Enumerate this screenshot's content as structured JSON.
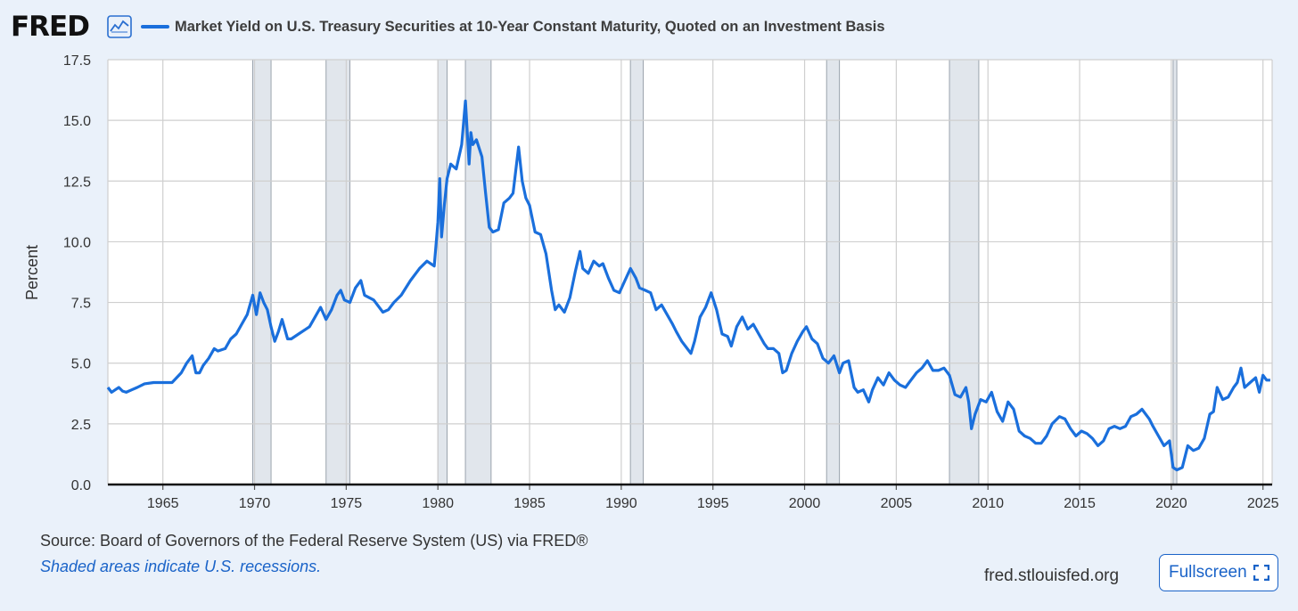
{
  "header": {
    "logo_text": "FRED",
    "logo_icon": "line-chart-icon",
    "title": "Market Yield on U.S. Treasury Securities at 10-Year Constant Maturity, Quoted on an Investment Basis"
  },
  "footer": {
    "source": "Source: Board of Governors of the Federal Reserve System (US) via FRED®",
    "note": "Shaded areas indicate U.S. recessions.",
    "site": "fred.stlouisfed.org",
    "fullscreen_label": "Fullscreen",
    "fullscreen_icon": "expand-icon"
  },
  "colors": {
    "line": "#1a6fdc",
    "recession_fill": "#e1e6ec",
    "background": "#eaf1fa",
    "link": "#1a63c8"
  },
  "chart_data": {
    "type": "line",
    "title": "Market Yield on U.S. Treasury Securities at 10-Year Constant Maturity, Quoted on an Investment Basis",
    "xlabel": "",
    "ylabel": "Percent",
    "xlim": [
      1962.0,
      2025.5
    ],
    "ylim": [
      0,
      17.5
    ],
    "yticks": [
      "0.0",
      "2.5",
      "5.0",
      "7.5",
      "10.0",
      "12.5",
      "15.0",
      "17.5"
    ],
    "xticks": [
      "1965",
      "1970",
      "1975",
      "1980",
      "1985",
      "1990",
      "1995",
      "2000",
      "2005",
      "2010",
      "2015",
      "2020",
      "2025"
    ],
    "grid": true,
    "recessions": [
      [
        1969.9,
        1970.9
      ],
      [
        1973.9,
        1975.2
      ],
      [
        1980.0,
        1980.5
      ],
      [
        1981.5,
        1982.9
      ],
      [
        1990.5,
        1991.2
      ],
      [
        2001.2,
        2001.9
      ],
      [
        2007.9,
        2009.5
      ],
      [
        2020.1,
        2020.3
      ]
    ],
    "series": [
      {
        "name": "Market Yield on U.S. Treasury Securities at 10-Year Constant Maturity, Quoted on an Investment Basis",
        "x": [
          1962.0,
          1962.2,
          1962.4,
          1962.6,
          1962.8,
          1963.0,
          1963.3,
          1963.6,
          1964.0,
          1964.5,
          1965.0,
          1965.5,
          1966.0,
          1966.3,
          1966.6,
          1966.8,
          1967.0,
          1967.2,
          1967.5,
          1967.8,
          1968.0,
          1968.4,
          1968.7,
          1969.0,
          1969.3,
          1969.6,
          1969.9,
          1970.1,
          1970.3,
          1970.5,
          1970.7,
          1970.9,
          1971.1,
          1971.3,
          1971.5,
          1971.8,
          1972.0,
          1972.4,
          1972.8,
          1973.0,
          1973.3,
          1973.6,
          1973.9,
          1974.2,
          1974.5,
          1974.7,
          1974.9,
          1975.2,
          1975.5,
          1975.8,
          1976.0,
          1976.5,
          1977.0,
          1977.3,
          1977.6,
          1978.0,
          1978.5,
          1979.0,
          1979.4,
          1979.8,
          1980.0,
          1980.1,
          1980.2,
          1980.35,
          1980.5,
          1980.7,
          1981.0,
          1981.3,
          1981.5,
          1981.7,
          1981.8,
          1981.9,
          1982.1,
          1982.4,
          1982.6,
          1982.8,
          1983.0,
          1983.3,
          1983.6,
          1983.9,
          1984.1,
          1984.4,
          1984.6,
          1984.8,
          1985.0,
          1985.3,
          1985.6,
          1985.9,
          1986.2,
          1986.4,
          1986.6,
          1986.9,
          1987.2,
          1987.5,
          1987.75,
          1987.9,
          1988.2,
          1988.5,
          1988.8,
          1989.0,
          1989.3,
          1989.6,
          1989.9,
          1990.2,
          1990.5,
          1990.8,
          1991.0,
          1991.3,
          1991.6,
          1991.9,
          1992.2,
          1992.5,
          1992.8,
          1993.0,
          1993.3,
          1993.6,
          1993.8,
          1994.0,
          1994.3,
          1994.6,
          1994.9,
          1995.2,
          1995.5,
          1995.8,
          1996.0,
          1996.3,
          1996.6,
          1996.9,
          1997.2,
          1997.5,
          1997.8,
          1998.0,
          1998.3,
          1998.6,
          1998.8,
          1999.0,
          1999.3,
          1999.6,
          1999.9,
          2000.1,
          2000.4,
          2000.7,
          2001.0,
          2001.3,
          2001.6,
          2001.9,
          2002.1,
          2002.4,
          2002.7,
          2002.9,
          2003.2,
          2003.5,
          2003.7,
          2004.0,
          2004.3,
          2004.6,
          2004.9,
          2005.2,
          2005.5,
          2005.8,
          2006.1,
          2006.4,
          2006.7,
          2007.0,
          2007.3,
          2007.6,
          2007.9,
          2008.2,
          2008.5,
          2008.8,
          2008.95,
          2009.1,
          2009.3,
          2009.6,
          2009.9,
          2010.2,
          2010.5,
          2010.8,
          2011.1,
          2011.4,
          2011.7,
          2012.0,
          2012.3,
          2012.6,
          2012.9,
          2013.2,
          2013.5,
          2013.9,
          2014.2,
          2014.5,
          2014.8,
          2015.1,
          2015.4,
          2015.7,
          2016.0,
          2016.3,
          2016.6,
          2016.9,
          2017.2,
          2017.5,
          2017.8,
          2018.1,
          2018.4,
          2018.8,
          2019.0,
          2019.3,
          2019.6,
          2019.9,
          2020.1,
          2020.3,
          2020.6,
          2020.9,
          2021.2,
          2021.5,
          2021.8,
          2022.1,
          2022.3,
          2022.5,
          2022.8,
          2023.1,
          2023.4,
          2023.6,
          2023.8,
          2024.0,
          2024.3,
          2024.6,
          2024.8,
          2025.0,
          2025.2,
          2025.4
        ],
        "values": [
          4.0,
          3.8,
          3.9,
          4.0,
          3.85,
          3.8,
          3.9,
          4.0,
          4.15,
          4.2,
          4.2,
          4.2,
          4.6,
          5.0,
          5.3,
          4.6,
          4.6,
          4.9,
          5.2,
          5.6,
          5.5,
          5.6,
          6.0,
          6.2,
          6.6,
          7.0,
          7.8,
          7.0,
          7.9,
          7.5,
          7.2,
          6.5,
          5.9,
          6.3,
          6.8,
          6.0,
          6.0,
          6.2,
          6.4,
          6.5,
          6.9,
          7.3,
          6.8,
          7.2,
          7.8,
          8.0,
          7.6,
          7.5,
          8.1,
          8.4,
          7.8,
          7.6,
          7.1,
          7.2,
          7.5,
          7.8,
          8.4,
          8.9,
          9.2,
          9.0,
          10.8,
          12.6,
          10.2,
          11.5,
          12.6,
          13.2,
          13.0,
          14.0,
          15.8,
          13.2,
          14.5,
          14.0,
          14.2,
          13.5,
          12.0,
          10.6,
          10.4,
          10.5,
          11.6,
          11.8,
          12.0,
          13.9,
          12.5,
          11.8,
          11.5,
          10.4,
          10.3,
          9.5,
          8.0,
          7.2,
          7.4,
          7.1,
          7.7,
          8.8,
          9.6,
          8.9,
          8.7,
          9.2,
          9.0,
          9.1,
          8.5,
          8.0,
          7.9,
          8.4,
          8.9,
          8.5,
          8.1,
          8.0,
          7.9,
          7.2,
          7.4,
          7.0,
          6.6,
          6.3,
          5.9,
          5.6,
          5.4,
          5.9,
          6.9,
          7.3,
          7.9,
          7.2,
          6.2,
          6.1,
          5.7,
          6.5,
          6.9,
          6.4,
          6.6,
          6.2,
          5.8,
          5.6,
          5.6,
          5.4,
          4.6,
          4.7,
          5.4,
          5.9,
          6.3,
          6.5,
          6.0,
          5.8,
          5.2,
          5.0,
          5.3,
          4.6,
          5.0,
          5.1,
          4.0,
          3.8,
          3.9,
          3.4,
          3.9,
          4.4,
          4.1,
          4.6,
          4.3,
          4.1,
          4.0,
          4.3,
          4.6,
          4.8,
          5.1,
          4.7,
          4.7,
          4.8,
          4.5,
          3.7,
          3.6,
          4.0,
          3.4,
          2.3,
          2.9,
          3.5,
          3.4,
          3.8,
          3.0,
          2.6,
          3.4,
          3.1,
          2.2,
          2.0,
          1.9,
          1.7,
          1.7,
          2.0,
          2.5,
          2.8,
          2.7,
          2.3,
          2.0,
          2.2,
          2.1,
          1.9,
          1.6,
          1.8,
          2.3,
          2.4,
          2.3,
          2.4,
          2.8,
          2.9,
          3.1,
          2.7,
          2.4,
          2.0,
          1.6,
          1.8,
          0.7,
          0.6,
          0.7,
          1.6,
          1.4,
          1.5,
          1.9,
          2.9,
          3.0,
          4.0,
          3.5,
          3.6,
          4.0,
          4.2,
          4.8,
          4.0,
          4.2,
          4.4,
          3.8,
          4.5,
          4.3,
          4.3
        ]
      }
    ]
  }
}
